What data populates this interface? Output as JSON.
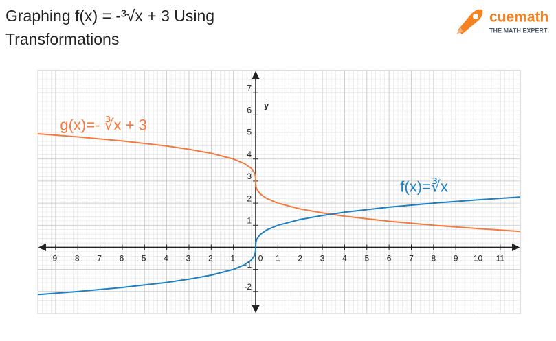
{
  "chart_data": {
    "type": "line",
    "title": "Graphing f(x) = -³√x + 3 Using Transformations",
    "brand": {
      "name": "cuemath",
      "tagline": "THE MATH EXPERT"
    },
    "y_label": "y",
    "x": [
      -9.8,
      -8,
      -6,
      -4,
      -3,
      -2,
      -1,
      -0.5,
      -0.2,
      -0.05,
      -0.01,
      -0.001,
      0,
      0.001,
      0.01,
      0.05,
      0.2,
      0.5,
      1,
      2,
      3,
      4,
      6,
      8,
      10,
      11.9
    ],
    "series": [
      {
        "name": "g(x)=- ∛x + 3",
        "color": "#f47b3e",
        "values": [
          5.14,
          5,
          4.82,
          4.59,
          4.44,
          4.26,
          4,
          3.79,
          3.58,
          3.37,
          3.22,
          3.1,
          3,
          2.9,
          2.78,
          2.63,
          2.42,
          2.21,
          2,
          1.74,
          1.56,
          1.41,
          1.18,
          1,
          0.85,
          0.72
        ]
      },
      {
        "name": "f(x)=∛x",
        "color": "#1d7fc2",
        "values": [
          -2.14,
          -2,
          -1.82,
          -1.59,
          -1.44,
          -1.26,
          -1,
          -0.79,
          -0.58,
          -0.37,
          -0.22,
          -0.1,
          0,
          0.1,
          0.22,
          0.37,
          0.58,
          0.79,
          1,
          1.26,
          1.44,
          1.59,
          1.82,
          2,
          2.15,
          2.28
        ]
      }
    ],
    "xlim": [
      -9.8,
      11.9
    ],
    "ylim": [
      -3,
      8
    ],
    "xticks": [
      -9,
      -8,
      -7,
      -6,
      -5,
      -4,
      -3,
      -2,
      -1,
      0,
      1,
      2,
      3,
      4,
      5,
      6,
      7,
      8,
      9,
      10,
      11
    ],
    "yticks": [
      -2,
      -1,
      1,
      2,
      3,
      4,
      5,
      6,
      7
    ],
    "grid": true
  }
}
